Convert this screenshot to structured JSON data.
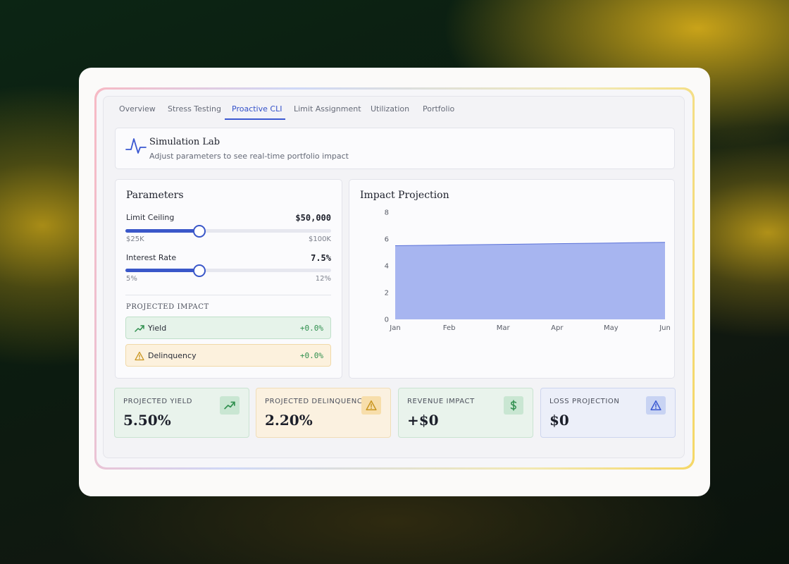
{
  "tabs": [
    {
      "label": "Overview"
    },
    {
      "label": "Stress Testing"
    },
    {
      "label": "Proactive CLI"
    },
    {
      "label": "Limit Assignment"
    },
    {
      "label": "Utilization"
    },
    {
      "label": "Portfolio"
    }
  ],
  "active_tab": "Proactive CLI",
  "header": {
    "title": "Simulation Lab",
    "subtitle": "Adjust parameters to see real-time portfolio impact",
    "icon": "pulse-icon"
  },
  "parameters": {
    "title": "Parameters",
    "limit_ceiling": {
      "label": "Limit Ceiling",
      "value": "$50,000",
      "min_label": "$25K",
      "max_label": "$100K",
      "fraction": 0.36
    },
    "interest_rate": {
      "label": "Interest Rate",
      "value": "7.5%",
      "min_label": "5%",
      "max_label": "12%",
      "fraction": 0.36
    },
    "projected_impact": {
      "heading": "PROJECTED IMPACT",
      "yield": {
        "label": "Yield",
        "value": "+0.0%",
        "icon": "trending-up-icon"
      },
      "delinquency": {
        "label": "Delinquency",
        "value": "+0.0%",
        "icon": "warning-icon"
      }
    }
  },
  "colors": {
    "accent": "#3b58d1",
    "area_fill": "#a7b5f0",
    "yield_bg": "#e6f3ea",
    "delinquency_bg": "#fcf1dd",
    "positive": "#2f8f4e"
  },
  "chart_data": {
    "type": "area",
    "title": "Impact Projection",
    "categories": [
      "Jan",
      "Feb",
      "Mar",
      "Apr",
      "May",
      "Jun"
    ],
    "series": [
      {
        "values": [
          5.5,
          5.55,
          5.6,
          5.65,
          5.7,
          5.75
        ]
      }
    ],
    "y_ticks": [
      "0",
      "2",
      "4",
      "6",
      "8"
    ],
    "ylim": [
      0,
      8
    ],
    "grid": false,
    "legend": "none"
  },
  "stats": [
    {
      "label": "PROJECTED YIELD",
      "value": "5.50%",
      "icon": "trending-up-icon"
    },
    {
      "label": "PROJECTED DELINQUENCY",
      "value": "2.20%",
      "icon": "warning-icon"
    },
    {
      "label": "REVENUE IMPACT",
      "value": "+$0",
      "icon": "dollar-icon"
    },
    {
      "label": "LOSS PROJECTION",
      "value": "$0",
      "icon": "alert-triangle-icon"
    }
  ]
}
